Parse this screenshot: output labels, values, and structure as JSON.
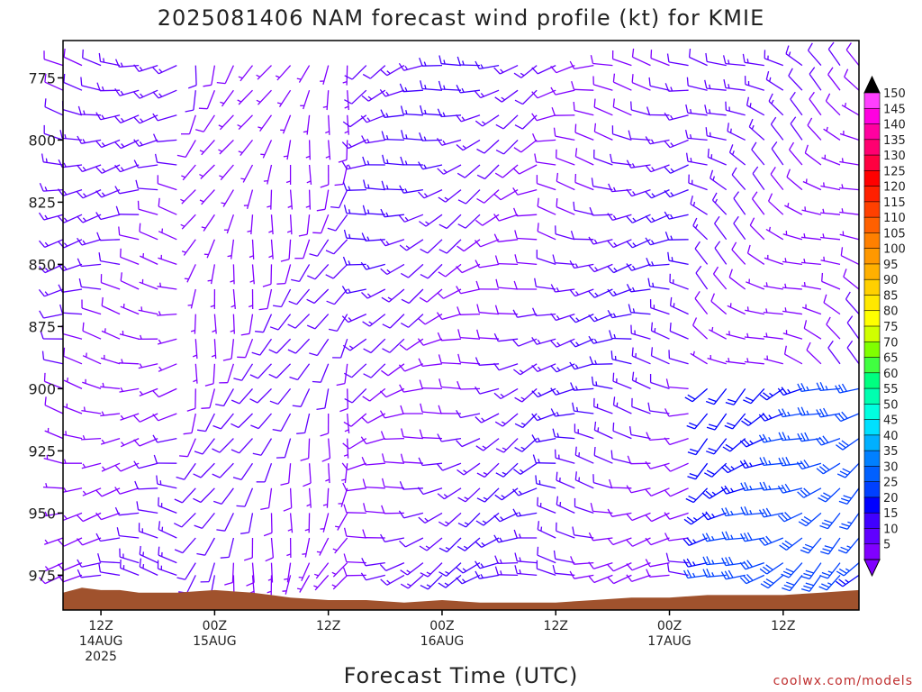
{
  "chart_data": {
    "type": "wind-barb-time-height",
    "title": "2025081406 NAM forecast wind profile (kt) for KMIE",
    "xlabel": "Forecast Time (UTC)",
    "ylabel": "",
    "credit": "coolwx.com/models",
    "y_ticks": [
      775,
      800,
      825,
      850,
      875,
      900,
      925,
      950,
      975
    ],
    "ylim": [
      989,
      760
    ],
    "x_ticks": [
      {
        "hour": 6,
        "lines": [
          "12Z",
          "14AUG",
          "2025"
        ]
      },
      {
        "hour": 24,
        "lines": [
          "00Z",
          "15AUG"
        ]
      },
      {
        "hour": 42,
        "lines": [
          "12Z"
        ]
      },
      {
        "hour": 60,
        "lines": [
          "00Z",
          "16AUG"
        ]
      },
      {
        "hour": 78,
        "lines": [
          "12Z"
        ]
      },
      {
        "hour": 96,
        "lines": [
          "00Z",
          "17AUG"
        ]
      },
      {
        "hour": 114,
        "lines": [
          "12Z"
        ]
      }
    ],
    "xlim": [
      0,
      126
    ],
    "colorbar": {
      "labels": [
        "150",
        "145",
        "140",
        "135",
        "130",
        "125",
        "120",
        "115",
        "110",
        "105",
        "100",
        "95",
        "90",
        "85",
        "80",
        "75",
        "70",
        "65",
        "60",
        "55",
        "50",
        "45",
        "40",
        "35",
        "30",
        "25",
        "20",
        "15",
        "10",
        "5"
      ],
      "colors": [
        "#ff40ff",
        "#ff00e0",
        "#ff00a0",
        "#ff0070",
        "#ff0040",
        "#ff0000",
        "#ff2000",
        "#ff4000",
        "#ff6000",
        "#ff8000",
        "#ff9800",
        "#ffb000",
        "#ffd000",
        "#ffe800",
        "#ffff00",
        "#d0ff00",
        "#80ff00",
        "#40ff40",
        "#00ff80",
        "#00ffb0",
        "#00ffe0",
        "#00e0ff",
        "#00b0ff",
        "#0080ff",
        "#0060ff",
        "#0040ff",
        "#0000ff",
        "#4000ff",
        "#6000ff",
        "#8000ff"
      ]
    },
    "surface_pressure": [
      {
        "hour": 0,
        "p": 982
      },
      {
        "hour": 3,
        "p": 980
      },
      {
        "hour": 6,
        "p": 981
      },
      {
        "hour": 9,
        "p": 981
      },
      {
        "hour": 12,
        "p": 982
      },
      {
        "hour": 18,
        "p": 982
      },
      {
        "hour": 24,
        "p": 981
      },
      {
        "hour": 30,
        "p": 982
      },
      {
        "hour": 33,
        "p": 983
      },
      {
        "hour": 36,
        "p": 984
      },
      {
        "hour": 42,
        "p": 985
      },
      {
        "hour": 48,
        "p": 985
      },
      {
        "hour": 54,
        "p": 986
      },
      {
        "hour": 60,
        "p": 985
      },
      {
        "hour": 66,
        "p": 986
      },
      {
        "hour": 72,
        "p": 986
      },
      {
        "hour": 78,
        "p": 986
      },
      {
        "hour": 84,
        "p": 985
      },
      {
        "hour": 90,
        "p": 984
      },
      {
        "hour": 96,
        "p": 984
      },
      {
        "hour": 102,
        "p": 983
      },
      {
        "hour": 108,
        "p": 983
      },
      {
        "hour": 114,
        "p": 983
      },
      {
        "hour": 120,
        "p": 982
      },
      {
        "hour": 126,
        "p": 981
      }
    ],
    "wind_grid": {
      "hour_start": 0,
      "hour_step": 3,
      "pressure_levels": [
        770,
        780,
        790,
        800,
        810,
        820,
        830,
        840,
        850,
        860,
        870,
        880,
        890,
        900,
        910,
        920,
        930,
        940,
        950,
        960,
        970,
        975
      ],
      "description_regimes": [
        {
          "hours": [
            0,
            21
          ],
          "p_range": [
            770,
            975
          ],
          "dir_deg": 270,
          "speed_kt": 10
        },
        {
          "hours": [
            21,
            48
          ],
          "p_range": [
            770,
            975
          ],
          "dir_deg": 200,
          "speed_kt": 8
        },
        {
          "hours": [
            48,
            78
          ],
          "p_range": [
            770,
            975
          ],
          "dir_deg": 250,
          "speed_kt": 12
        },
        {
          "hours": [
            78,
            100
          ],
          "p_range": [
            770,
            975
          ],
          "dir_deg": 270,
          "speed_kt": 12
        },
        {
          "hours": [
            100,
            126
          ],
          "p_range": [
            890,
            975
          ],
          "dir_deg": 240,
          "speed_kt": 25
        },
        {
          "hours": [
            100,
            126
          ],
          "p_range": [
            770,
            890
          ],
          "dir_deg": 300,
          "speed_kt": 10
        }
      ]
    }
  }
}
